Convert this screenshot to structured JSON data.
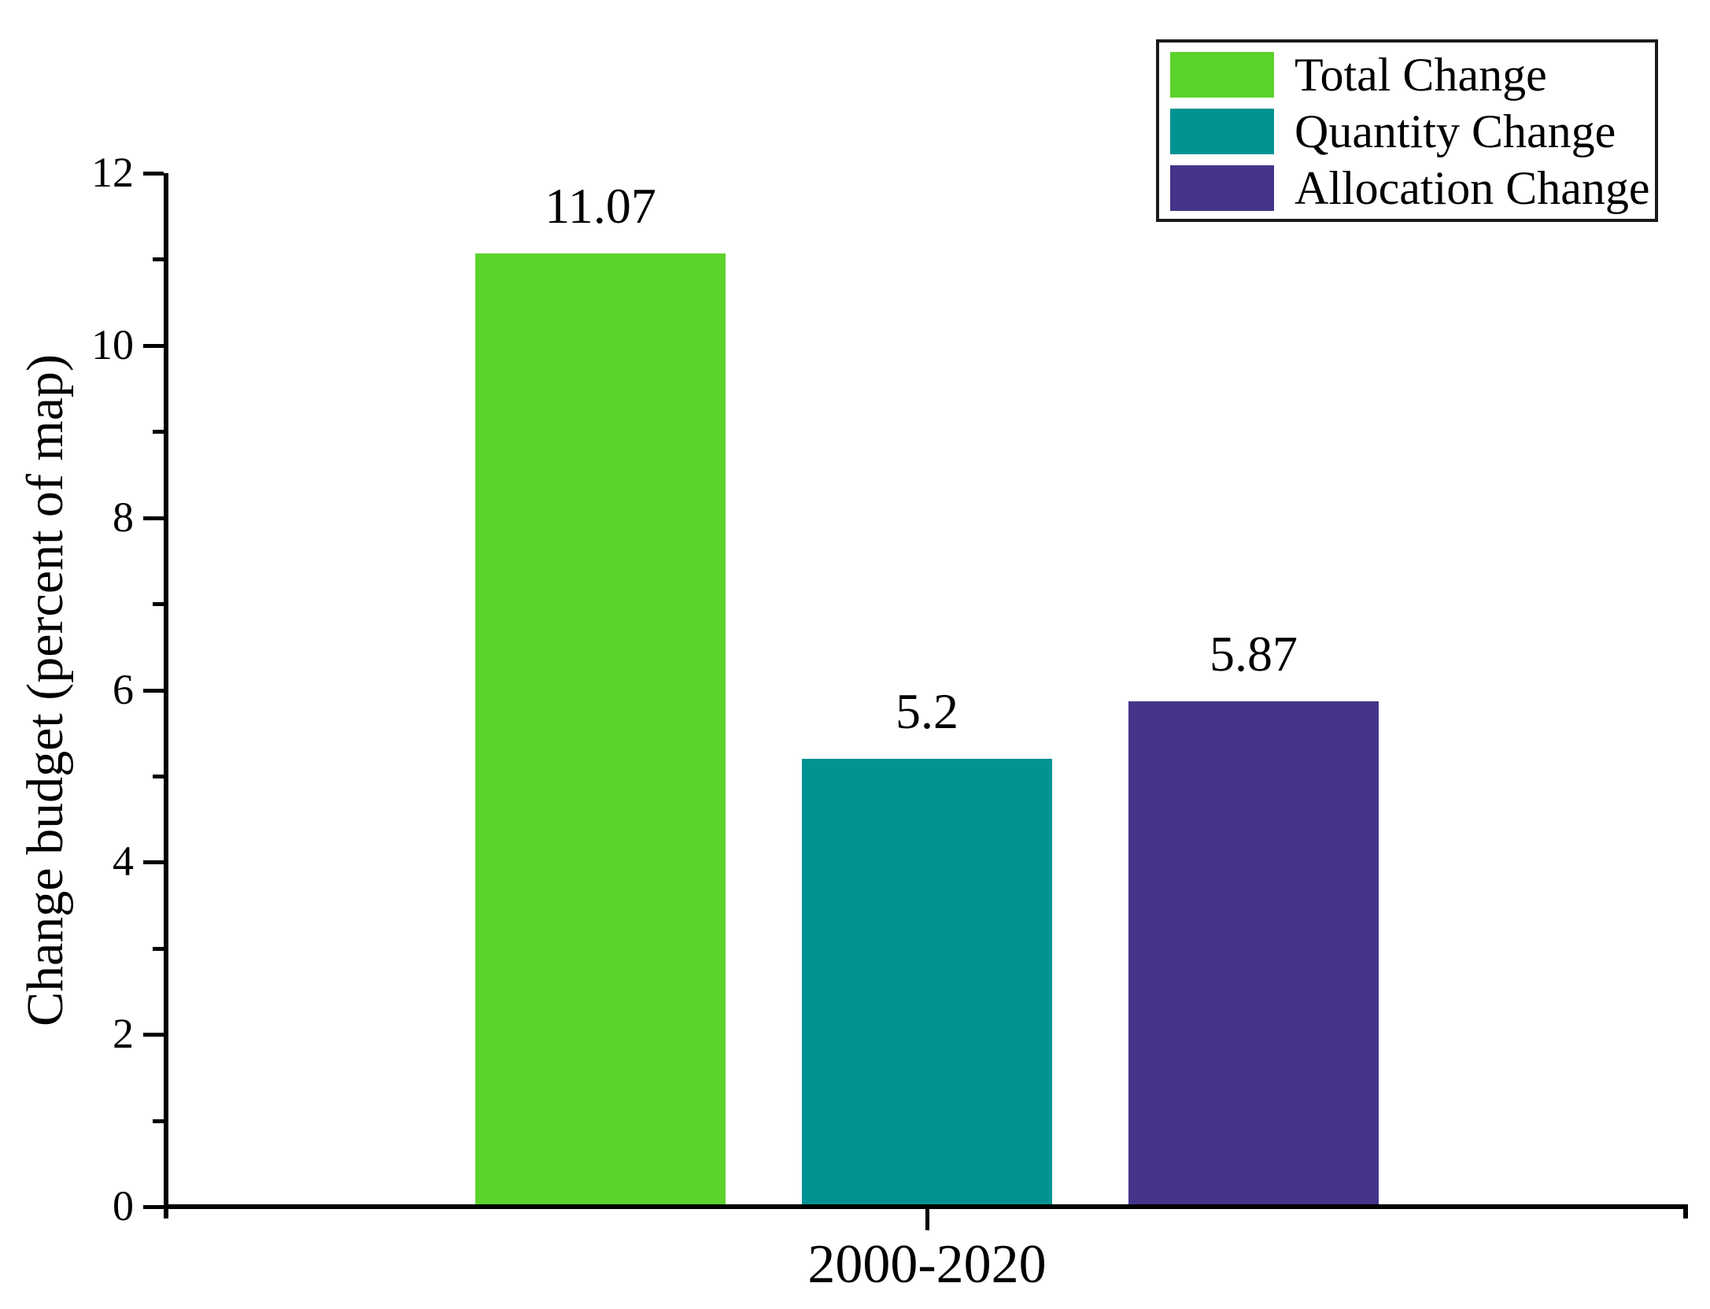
{
  "chart_data": {
    "type": "bar",
    "title": "",
    "categories": [
      "2000-2020"
    ],
    "series": [
      {
        "name": "Total Change",
        "values": [
          11.07
        ],
        "label": "11.07",
        "color": "#5CD22D"
      },
      {
        "name": "Quantity Change",
        "values": [
          5.2
        ],
        "label": "5.2",
        "color": "#009392"
      },
      {
        "name": "Allocation Change",
        "values": [
          5.87
        ],
        "label": "5.87",
        "color": "#46348A"
      }
    ],
    "xlabel": "",
    "ylabel": "Change budget (percent of map)",
    "ylim": [
      0,
      12
    ],
    "y_major_ticks": [
      0,
      2,
      4,
      6,
      8,
      10,
      12
    ],
    "y_minor_ticks": [
      1,
      3,
      5,
      7,
      9,
      11
    ],
    "grid": false,
    "legend_position": "top-right",
    "colors": {
      "axis": "#000000",
      "text": "#000000",
      "legend_border": "#1a1a1a",
      "background": "#ffffff"
    }
  }
}
